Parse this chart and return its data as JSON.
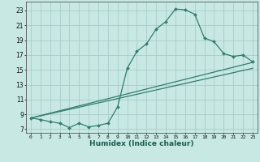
{
  "xlabel": "Humidex (Indice chaleur)",
  "bg_color": "#c8e8e4",
  "grid_color": "#a8ccca",
  "line_color": "#2e7d6e",
  "xlim": [
    -0.5,
    23.5
  ],
  "ylim": [
    6.5,
    24.2
  ],
  "yticks": [
    7,
    9,
    11,
    13,
    15,
    17,
    19,
    21,
    23
  ],
  "xticks": [
    0,
    1,
    2,
    3,
    4,
    5,
    6,
    7,
    8,
    9,
    10,
    11,
    12,
    13,
    14,
    15,
    16,
    17,
    18,
    19,
    20,
    21,
    22,
    23
  ],
  "curve_x": [
    0,
    1,
    2,
    3,
    4,
    5,
    6,
    7,
    8,
    9,
    10,
    11,
    12,
    13,
    14,
    15,
    16,
    17,
    18,
    19,
    20,
    21,
    22,
    23
  ],
  "curve_y": [
    8.5,
    8.3,
    8.0,
    7.8,
    7.2,
    7.8,
    7.3,
    7.5,
    7.8,
    10.0,
    15.2,
    17.5,
    18.5,
    20.5,
    21.5,
    23.2,
    23.1,
    22.5,
    19.3,
    18.8,
    17.2,
    16.8,
    17.0,
    16.1
  ],
  "line1_x": [
    0,
    23
  ],
  "line1_y": [
    8.5,
    16.0
  ],
  "line2_x": [
    0,
    23
  ],
  "line2_y": [
    8.5,
    15.2
  ]
}
